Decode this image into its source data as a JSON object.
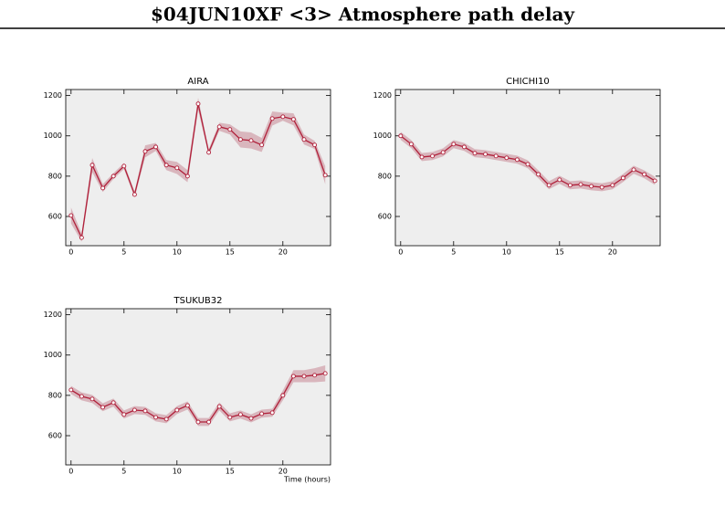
{
  "title": "$04JUN10XF <3>  Atmosphere path delay",
  "chart_data": [
    {
      "type": "line",
      "title": "AIRA",
      "x": [
        0,
        1,
        2,
        3,
        4,
        5,
        6,
        7,
        8,
        9,
        10,
        11,
        12,
        13,
        14,
        15,
        16,
        17,
        18,
        19,
        20,
        21,
        22,
        23,
        24
      ],
      "values": [
        605,
        495,
        855,
        741,
        800,
        850,
        709,
        923,
        945,
        855,
        841,
        800,
        1159,
        918,
        1045,
        1032,
        982,
        977,
        955,
        1086,
        1095,
        1082,
        982,
        955,
        805
      ],
      "errors": [
        40,
        20,
        35,
        20,
        15,
        15,
        15,
        30,
        20,
        25,
        30,
        30,
        30,
        15,
        20,
        25,
        40,
        40,
        35,
        35,
        20,
        30,
        25,
        20,
        45
      ],
      "xlim": [
        -0.5,
        24.5
      ],
      "ylim": [
        455,
        1230
      ],
      "xticks": [
        0,
        5,
        10,
        15,
        20
      ],
      "yticks": [
        600,
        800,
        1000,
        1200
      ],
      "color": "#b0203a",
      "band_color": "#d9b6bd"
    },
    {
      "type": "line",
      "title": "CHICHI10",
      "x": [
        0,
        1,
        2,
        3,
        4,
        5,
        6,
        7,
        8,
        9,
        10,
        11,
        12,
        13,
        14,
        15,
        16,
        17,
        18,
        19,
        20,
        21,
        22,
        23,
        24
      ],
      "values": [
        1000,
        959,
        895,
        900,
        918,
        959,
        945,
        914,
        909,
        900,
        891,
        882,
        859,
        809,
        755,
        782,
        755,
        759,
        750,
        745,
        755,
        791,
        832,
        809,
        777
      ],
      "errors": [
        20,
        20,
        20,
        20,
        20,
        20,
        20,
        20,
        20,
        20,
        20,
        20,
        20,
        20,
        20,
        20,
        20,
        20,
        20,
        20,
        20,
        20,
        20,
        20,
        20
      ],
      "xlim": [
        -0.5,
        24.5
      ],
      "ylim": [
        455,
        1230
      ],
      "xticks": [
        0,
        5,
        10,
        15,
        20
      ],
      "yticks": [
        600,
        800,
        1000,
        1200
      ],
      "color": "#b0203a",
      "band_color": "#d9b6bd"
    },
    {
      "type": "line",
      "title": "TSUKUB32",
      "xlabel": "Time (hours)",
      "x": [
        0,
        1,
        2,
        3,
        4,
        5,
        6,
        7,
        8,
        9,
        10,
        11,
        12,
        13,
        14,
        15,
        16,
        17,
        18,
        19,
        20,
        21,
        22,
        23,
        24
      ],
      "values": [
        827,
        795,
        782,
        741,
        764,
        705,
        727,
        723,
        691,
        682,
        727,
        750,
        668,
        668,
        745,
        691,
        705,
        686,
        709,
        714,
        800,
        895,
        895,
        900,
        909
      ],
      "errors": [
        20,
        20,
        20,
        20,
        20,
        20,
        20,
        20,
        20,
        20,
        20,
        20,
        20,
        20,
        20,
        20,
        20,
        20,
        20,
        20,
        25,
        30,
        30,
        35,
        40
      ],
      "xlim": [
        -0.5,
        24.5
      ],
      "ylim": [
        455,
        1230
      ],
      "xticks": [
        0,
        5,
        10,
        15,
        20
      ],
      "yticks": [
        600,
        800,
        1000,
        1200
      ],
      "color": "#b0203a",
      "band_color": "#d9b6bd"
    }
  ]
}
